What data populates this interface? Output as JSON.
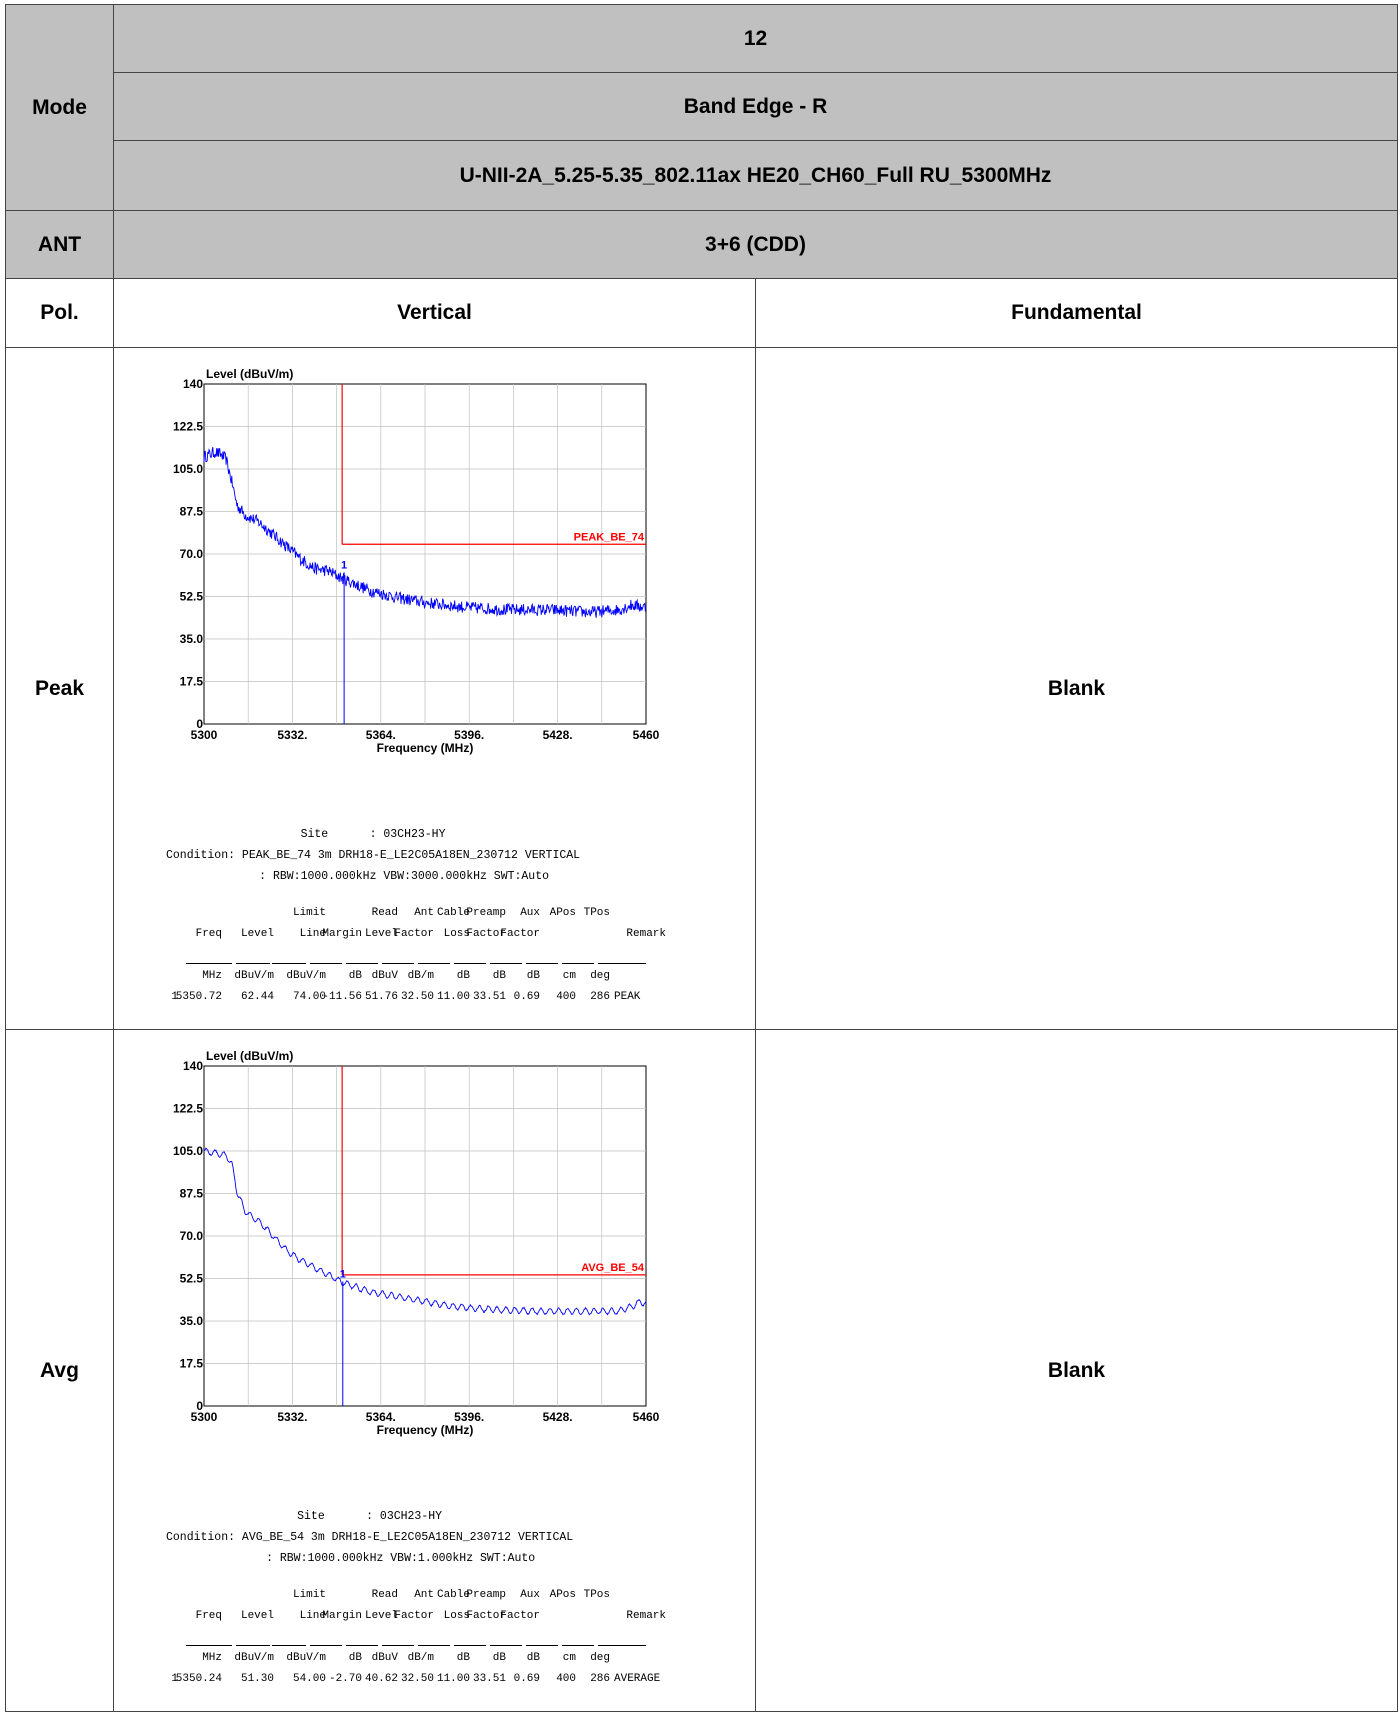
{
  "header": {
    "mode_label": "Mode",
    "row1_value": "12",
    "row2_value": "Band Edge - R",
    "row3_value": "U-NII-2A_5.25-5.35_802.11ax HE20_CH60_Full RU_5300MHz",
    "ant_label": "ANT",
    "ant_value": "3+6 (CDD)",
    "pol_label": "Pol.",
    "pol_vertical": "Vertical",
    "pol_fundamental": "Fundamental"
  },
  "rows": [
    {
      "label": "Peak",
      "right": "Blank",
      "info": {
        "site": "Site      : 03CH23-HY",
        "condition": "Condition: PEAK_BE_74 3m DRH18-E_LE2C05A18EN_230712 VERTICAL",
        "condition2": "         : RBW:1000.000kHz VBW:3000.000kHz SWT:Auto"
      },
      "table": {
        "h1": [
          "",
          "",
          "Limit",
          "",
          "Read",
          "Ant",
          "Cable",
          "Preamp",
          "Aux",
          "APos",
          "TPos",
          ""
        ],
        "h2": [
          "Freq",
          "Level",
          "Line",
          "Margin",
          "Level",
          "Factor",
          "Loss",
          "Factor",
          "Factor",
          "",
          "",
          "Remark"
        ],
        "units": [
          "MHz",
          "dBuV/m",
          "dBuV/m",
          "dB",
          "dBuV",
          "dB/m",
          "dB",
          "dB",
          "dB",
          "cm",
          "deg",
          ""
        ],
        "data": [
          "1",
          "5350.72",
          "62.44",
          "74.00",
          "-11.56",
          "51.76",
          "32.50",
          "11.00",
          "33.51",
          "0.69",
          "400",
          "286",
          "PEAK"
        ]
      }
    },
    {
      "label": "Avg",
      "right": "Blank",
      "info": {
        "site": "Site      : 03CH23-HY",
        "condition": "Condition: AVG_BE_54 3m DRH18-E_LE2C05A18EN_230712 VERTICAL",
        "condition2": "         : RBW:1000.000kHz VBW:1.000kHz SWT:Auto"
      },
      "table": {
        "h1": [
          "",
          "",
          "Limit",
          "",
          "Read",
          "Ant",
          "Cable",
          "Preamp",
          "Aux",
          "APos",
          "TPos",
          ""
        ],
        "h2": [
          "Freq",
          "Level",
          "Line",
          "Margin",
          "Level",
          "Factor",
          "Loss",
          "Factor",
          "Factor",
          "",
          "",
          "Remark"
        ],
        "units": [
          "MHz",
          "dBuV/m",
          "dBuV/m",
          "dB",
          "dBuV",
          "dB/m",
          "dB",
          "dB",
          "dB",
          "cm",
          "deg",
          ""
        ],
        "data": [
          "1",
          "5350.24",
          "51.30",
          "54.00",
          "-2.70",
          "40.62",
          "32.50",
          "11.00",
          "33.51",
          "0.69",
          "400",
          "286",
          "AVERAGE"
        ]
      }
    }
  ],
  "chart_data": [
    {
      "type": "line",
      "ylabel": "Level (dBuV/m)",
      "xlabel": "Frequency (MHz)",
      "xlim": [
        5300,
        5460
      ],
      "ylim": [
        0,
        140
      ],
      "xticks": [
        "5300",
        "5332.",
        "5364.",
        "5396.",
        "5428.",
        "5460"
      ],
      "xtick_values": [
        5300,
        5332,
        5364,
        5396,
        5428,
        5460
      ],
      "yticks": [
        "0",
        "17.5",
        "35.0",
        "52.5",
        "70.0",
        "87.5",
        "105.0",
        "122.5",
        "140"
      ],
      "ytick_values": [
        0,
        17.5,
        35,
        52.5,
        70,
        87.5,
        105,
        122.5,
        140
      ],
      "grid": true,
      "limit": {
        "name": "PEAK_BE_74",
        "band_edge": 5350,
        "level": 74,
        "color": "#ff0000"
      },
      "marker": {
        "label": "1",
        "x": 5350.72,
        "y": 62.44
      },
      "series": [
        {
          "color": "#0000ff",
          "noise": "peak",
          "x": [
            5300,
            5304,
            5306,
            5308,
            5310,
            5312,
            5315,
            5320,
            5325,
            5330,
            5335,
            5340,
            5345,
            5350,
            5360,
            5370,
            5380,
            5395,
            5410,
            5425,
            5440,
            5450,
            5455,
            5460
          ],
          "y": [
            110,
            112,
            111,
            109,
            100,
            90,
            86,
            83,
            78,
            73,
            68,
            64,
            63,
            60,
            55,
            52,
            50,
            48,
            47,
            47,
            46,
            47,
            49,
            48
          ]
        }
      ]
    },
    {
      "type": "line",
      "ylabel": "Level (dBuV/m)",
      "xlabel": "Frequency (MHz)",
      "xlim": [
        5300,
        5460
      ],
      "ylim": [
        0,
        140
      ],
      "xticks": [
        "5300",
        "5332.",
        "5364.",
        "5396.",
        "5428.",
        "5460"
      ],
      "xtick_values": [
        5300,
        5332,
        5364,
        5396,
        5428,
        5460
      ],
      "yticks": [
        "0",
        "17.5",
        "35.0",
        "52.5",
        "70.0",
        "87.5",
        "105.0",
        "122.5",
        "140"
      ],
      "ytick_values": [
        0,
        17.5,
        35,
        52.5,
        70,
        87.5,
        105,
        122.5,
        140
      ],
      "grid": true,
      "limit": {
        "name": "AVG_BE_54",
        "band_edge": 5350,
        "level": 54,
        "color": "#ff0000"
      },
      "marker": {
        "label": "1",
        "x": 5350.24,
        "y": 51.3
      },
      "series": [
        {
          "color": "#0000ff",
          "noise": "avg",
          "x": [
            5300,
            5305,
            5308,
            5310,
            5312,
            5315,
            5320,
            5325,
            5330,
            5335,
            5340,
            5345,
            5350,
            5360,
            5370,
            5380,
            5390,
            5400,
            5420,
            5440,
            5450,
            5455,
            5458,
            5460
          ],
          "y": [
            105,
            104,
            103,
            100,
            88,
            80,
            76,
            70,
            64,
            60,
            57,
            54,
            51,
            47,
            45,
            43,
            41,
            40,
            39,
            39,
            39,
            41,
            43,
            42
          ]
        }
      ]
    }
  ]
}
